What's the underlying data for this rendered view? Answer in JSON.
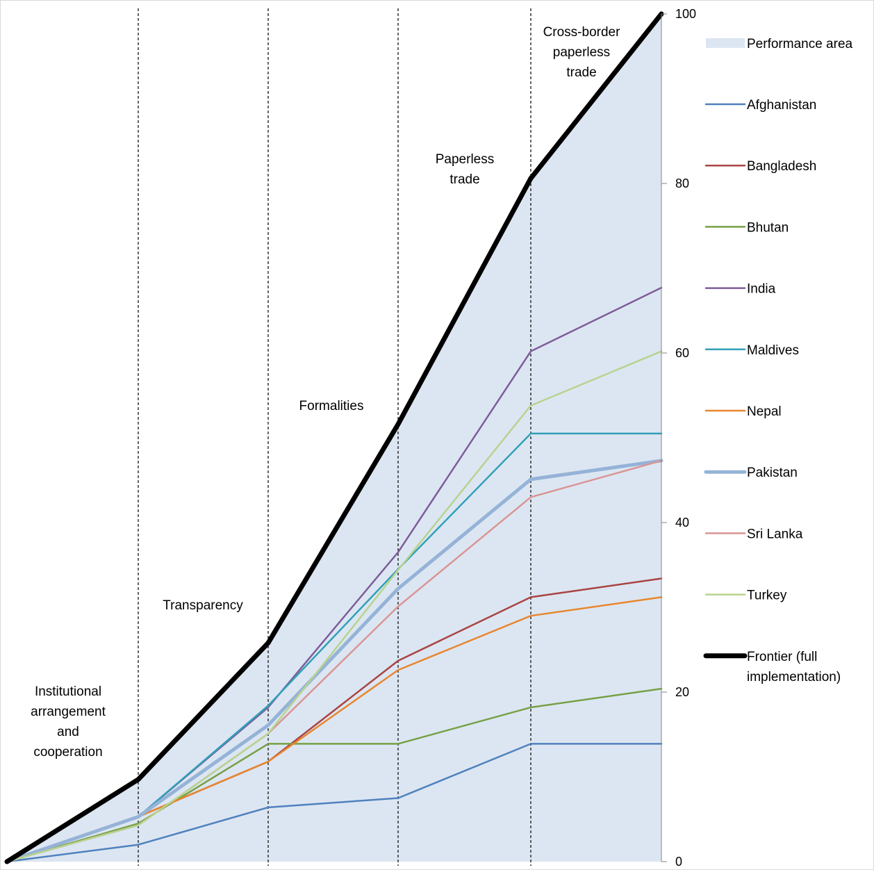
{
  "chart_data": {
    "type": "area",
    "title": "",
    "xlabel": "",
    "ylabel": "",
    "ylim": [
      0,
      100
    ],
    "yticks": [
      0,
      20,
      40,
      60,
      80,
      100
    ],
    "y_axis_side": "right",
    "grid": false,
    "legend_position": "right",
    "stage_labels": [
      "Institutional arrangement and cooperation",
      "Transparency",
      "Formalities",
      "Paperless trade",
      "Cross-border paperless trade"
    ],
    "performance_area": {
      "name": "Performance area",
      "color": "#dce6f2"
    },
    "series": [
      {
        "name": "Afghanistan",
        "color": "#4f81bd",
        "width": 2.5,
        "values": [
          0,
          2,
          6.4,
          7.5,
          13.9,
          13.9
        ]
      },
      {
        "name": "Bangladesh",
        "color": "#a94442",
        "width": 2.5,
        "values": [
          0,
          5.3,
          11.8,
          23.7,
          31.2,
          33.4
        ]
      },
      {
        "name": "Bhutan",
        "color": "#77a045",
        "width": 2.5,
        "values": [
          0,
          4.5,
          13.9,
          13.9,
          18.2,
          20.4
        ]
      },
      {
        "name": "India",
        "color": "#7e5c9a",
        "width": 2.5,
        "values": [
          0,
          5.3,
          18.2,
          36.5,
          60.2,
          67.7
        ]
      },
      {
        "name": "Maldives",
        "color": "#31a0b8",
        "width": 2.5,
        "values": [
          0,
          5.3,
          18.4,
          34.5,
          50.5,
          50.5
        ]
      },
      {
        "name": "Nepal",
        "color": "#e8862e",
        "width": 2.5,
        "values": [
          0,
          5.3,
          11.8,
          22.6,
          29.0,
          31.2
        ]
      },
      {
        "name": "Pakistan",
        "color": "#95b3d7",
        "width": 5,
        "values": [
          0,
          5.3,
          16.1,
          32.2,
          45.1,
          47.3
        ]
      },
      {
        "name": "Sri Lanka",
        "color": "#d99594",
        "width": 2.5,
        "values": [
          0,
          4.3,
          15.1,
          30.1,
          43.0,
          47.3
        ]
      },
      {
        "name": "Turkey",
        "color": "#b7d38f",
        "width": 2.5,
        "values": [
          0,
          4.3,
          15.1,
          34.4,
          53.8,
          60.2
        ]
      },
      {
        "name": "Frontier (full implementation)",
        "color": "#000000",
        "width": 7,
        "values": [
          0,
          9.7,
          25.8,
          51.6,
          80.6,
          100
        ]
      }
    ]
  }
}
